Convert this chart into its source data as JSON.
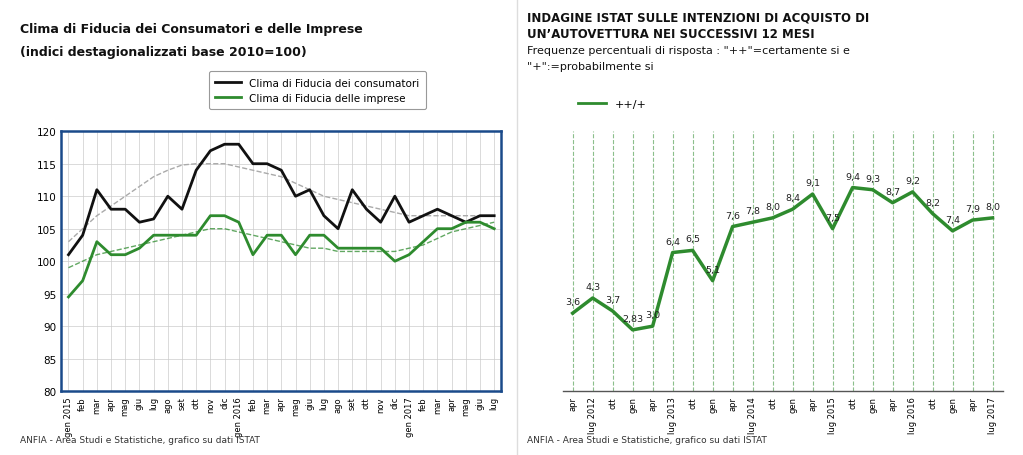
{
  "left_title1": "Clima di Fiducia dei Consumatori e delle Imprese",
  "left_title2": "(indici destagionalizzati base 2010=100)",
  "left_footer": "ANFIA - Area Studi e Statistiche, grafico su dati ISTAT",
  "right_footer": "ANFIA - Area Studi e Statistiche, grafico su dati ISTAT",
  "right_title_line1": "INDAGINE ISTAT SULLE INTENZIONI DI ACQUISTO DI",
  "right_title_line2": "UN’AUTOVETTURA NEI SUCCESSIVI 12 MESI",
  "right_subtitle_line1": "Frequenze percentuali di risposta : \"++\"=certamente si e",
  "right_subtitle_line2": "\"+\":=probabilmente si",
  "left_legend1": "Clima di Fiducia dei consumatori",
  "left_legend2": "Clima di Fiducia delle imprese",
  "right_legend": "++/+",
  "xlabels_left": [
    "gen 2015",
    "feb",
    "mar",
    "apr",
    "mag",
    "giu",
    "lug",
    "ago",
    "set",
    "ott",
    "nov",
    "dic",
    "gen 2016",
    "feb",
    "mar",
    "apr",
    "mag",
    "giu",
    "lug",
    "ago",
    "set",
    "ott",
    "nov",
    "dic",
    "gen 2017",
    "feb",
    "mar",
    "apr",
    "mag",
    "giu",
    "lug"
  ],
  "consumers": [
    101.0,
    104.0,
    111.0,
    108.0,
    108.0,
    106.0,
    106.5,
    110.0,
    108.0,
    114.0,
    117.0,
    118.0,
    118.0,
    115.0,
    115.0,
    114.0,
    110.0,
    111.0,
    107.0,
    105.0,
    111.0,
    108.0,
    106.0,
    110.0,
    106.0,
    107.0,
    108.0,
    107.0,
    106.0,
    107.0,
    107.0
  ],
  "enterprises": [
    94.5,
    97.0,
    103.0,
    101.0,
    101.0,
    102.0,
    104.0,
    104.0,
    104.0,
    104.0,
    107.0,
    107.0,
    106.0,
    101.0,
    104.0,
    104.0,
    101.0,
    104.0,
    104.0,
    102.0,
    102.0,
    102.0,
    102.0,
    100.0,
    101.0,
    103.0,
    105.0,
    105.0,
    106.0,
    106.0,
    105.0
  ],
  "consumers_trend": [
    103.0,
    105.0,
    107.0,
    108.5,
    110.0,
    111.5,
    113.0,
    114.0,
    114.8,
    115.0,
    115.0,
    115.0,
    114.5,
    114.0,
    113.5,
    113.0,
    112.0,
    111.0,
    110.0,
    109.5,
    109.0,
    108.5,
    108.0,
    107.5,
    107.0,
    107.0,
    107.0,
    107.0,
    107.0,
    107.0,
    107.0
  ],
  "enterprises_trend": [
    99.0,
    100.0,
    101.0,
    101.5,
    102.0,
    102.5,
    103.0,
    103.5,
    104.0,
    104.5,
    105.0,
    105.0,
    104.5,
    104.0,
    103.5,
    103.0,
    102.5,
    102.0,
    102.0,
    101.5,
    101.5,
    101.5,
    101.5,
    101.5,
    102.0,
    102.5,
    103.5,
    104.5,
    105.0,
    105.5,
    106.0
  ],
  "left_ylim": [
    80,
    120
  ],
  "left_yticks": [
    80,
    85,
    90,
    95,
    100,
    105,
    110,
    115,
    120
  ],
  "right_xlabels": [
    "apr",
    "lug 2012",
    "ott",
    "gen",
    "apr",
    "lug 2013",
    "ott",
    "gen",
    "apr",
    "lug 2014",
    "ott",
    "gen",
    "apr",
    "lug 2015",
    "ott",
    "gen",
    "apr",
    "lug 2016",
    "ott",
    "gen",
    "apr",
    "lug 2017"
  ],
  "right_values": [
    3.6,
    4.3,
    3.7,
    2.83,
    3.0,
    6.4,
    6.5,
    5.1,
    7.6,
    7.8,
    8.0,
    8.4,
    9.1,
    7.5,
    9.4,
    9.3,
    8.7,
    9.2,
    8.2,
    7.4,
    7.9,
    8.0
  ],
  "right_value_labels": [
    "3,6",
    "4,3",
    "3,7",
    "2,83",
    "3,0",
    "6,4",
    "6,5",
    "5,1",
    "7,6",
    "7,8",
    "8,0",
    "8,4",
    "9,1",
    "7,5",
    "9,4",
    "9,3",
    "8,7",
    "9,2",
    "8,2",
    "7,4",
    "7,9",
    "8,0"
  ],
  "right_ylim": [
    0,
    12
  ],
  "green_color": "#2e8b2e",
  "black_color": "#111111",
  "border_color": "#1a4a8a",
  "grid_color": "#cccccc",
  "dashed_gray": "#aaaaaa"
}
